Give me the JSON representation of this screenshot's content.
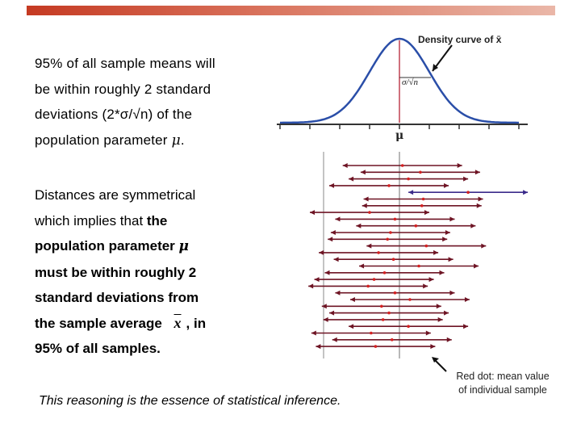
{
  "paragraph1": {
    "line1": "95% of all sample means will",
    "line2": "be within roughly 2 standard",
    "line3": "deviations (2*σ/√n) of the",
    "line4_text": "population parameter ",
    "line4_symbol": "μ",
    "line4_end": "."
  },
  "paragraph2": {
    "line1": "Distances are symmetrical",
    "line2_a": "which implies that ",
    "line2_b": "the",
    "line3_text": "population parameter ",
    "line3_symbol": "μ",
    "line4": "must be within roughly 2",
    "line5": "standard deviations from",
    "line6_text": "the sample average ",
    "line6_symbol": "x",
    "line6_end": ", in",
    "line7": "95% of all samples."
  },
  "diagram": {
    "curve_label": "Density curve of x̄",
    "sd_label": "σ/√n",
    "mu_label": "μ",
    "intervals": [
      {
        "center": 0.1,
        "ok": true
      },
      {
        "center": 0.7,
        "ok": true
      },
      {
        "center": 0.3,
        "ok": true
      },
      {
        "center": -0.35,
        "ok": true
      },
      {
        "center": 2.3,
        "ok": false
      },
      {
        "center": 0.8,
        "ok": true
      },
      {
        "center": 0.75,
        "ok": true
      },
      {
        "center": -1.0,
        "ok": true
      },
      {
        "center": -0.15,
        "ok": true
      },
      {
        "center": 0.55,
        "ok": true
      },
      {
        "center": -0.3,
        "ok": true
      },
      {
        "center": -0.4,
        "ok": true
      },
      {
        "center": 0.9,
        "ok": true
      },
      {
        "center": -0.7,
        "ok": true
      },
      {
        "center": -0.2,
        "ok": true
      },
      {
        "center": 0.65,
        "ok": true
      },
      {
        "center": -0.5,
        "ok": true
      },
      {
        "center": -0.85,
        "ok": true
      },
      {
        "center": -1.05,
        "ok": true
      },
      {
        "center": -0.15,
        "ok": true
      },
      {
        "center": 0.35,
        "ok": true
      },
      {
        "center": -0.6,
        "ok": true
      },
      {
        "center": -0.35,
        "ok": true
      },
      {
        "center": -0.55,
        "ok": true
      },
      {
        "center": 0.3,
        "ok": true
      },
      {
        "center": -0.95,
        "ok": true
      },
      {
        "center": -0.25,
        "ok": true
      },
      {
        "center": -0.8,
        "ok": true
      }
    ]
  },
  "annotation": {
    "line1": "Red dot: mean value",
    "line2": "of individual sample"
  },
  "footer": "This reasoning is the essence of statistical inference."
}
